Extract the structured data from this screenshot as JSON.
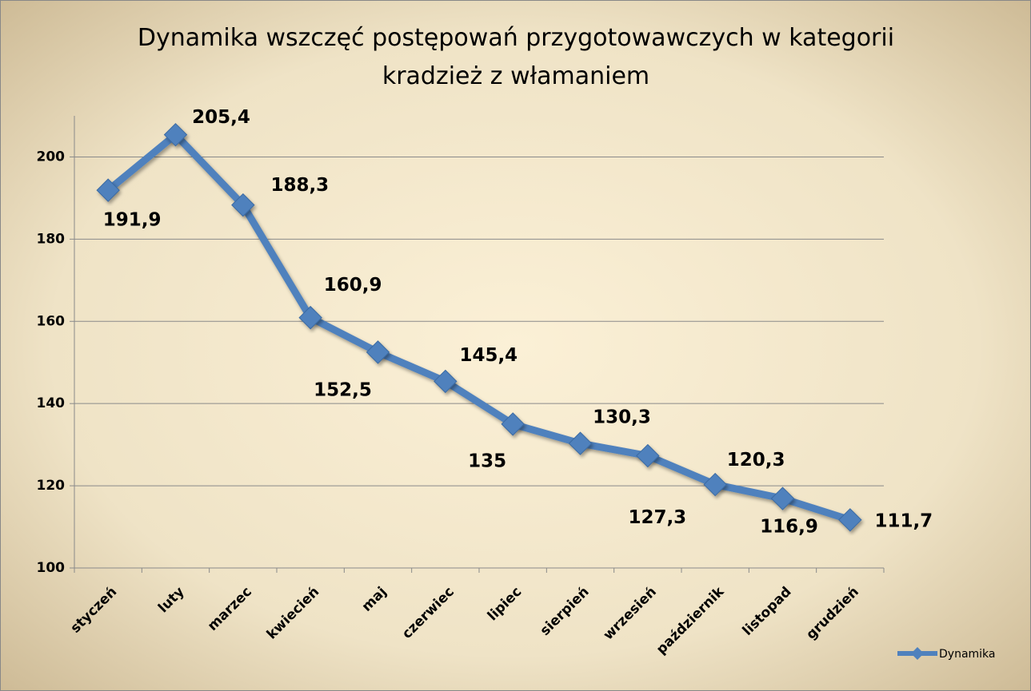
{
  "chart_data": {
    "type": "line",
    "title": "Dynamika wszczęć postępowań przygotowawczych w kategorii kradzież z włamaniem",
    "categories": [
      "styczeń",
      "luty",
      "marzec",
      "kwiecień",
      "maj",
      "czerwiec",
      "lipiec",
      "sierpień",
      "wrzesień",
      "październik",
      "listopad",
      "grudzień"
    ],
    "series": [
      {
        "name": "Dynamika",
        "color": "#4f81bd",
        "values": [
          191.9,
          205.4,
          188.3,
          160.9,
          152.5,
          145.4,
          135,
          130.3,
          127.3,
          120.3,
          116.9,
          111.7
        ],
        "value_labels": [
          "191,9",
          "205,4",
          "188,3",
          "160,9",
          "152,5",
          "145,4",
          "135",
          "130,3",
          "127,3",
          "120,3",
          "116,9",
          "111,7"
        ]
      }
    ],
    "ylim": [
      100,
      210
    ],
    "yticks": [
      100,
      120,
      140,
      160,
      180,
      200
    ],
    "grid": true,
    "legend": "right"
  }
}
